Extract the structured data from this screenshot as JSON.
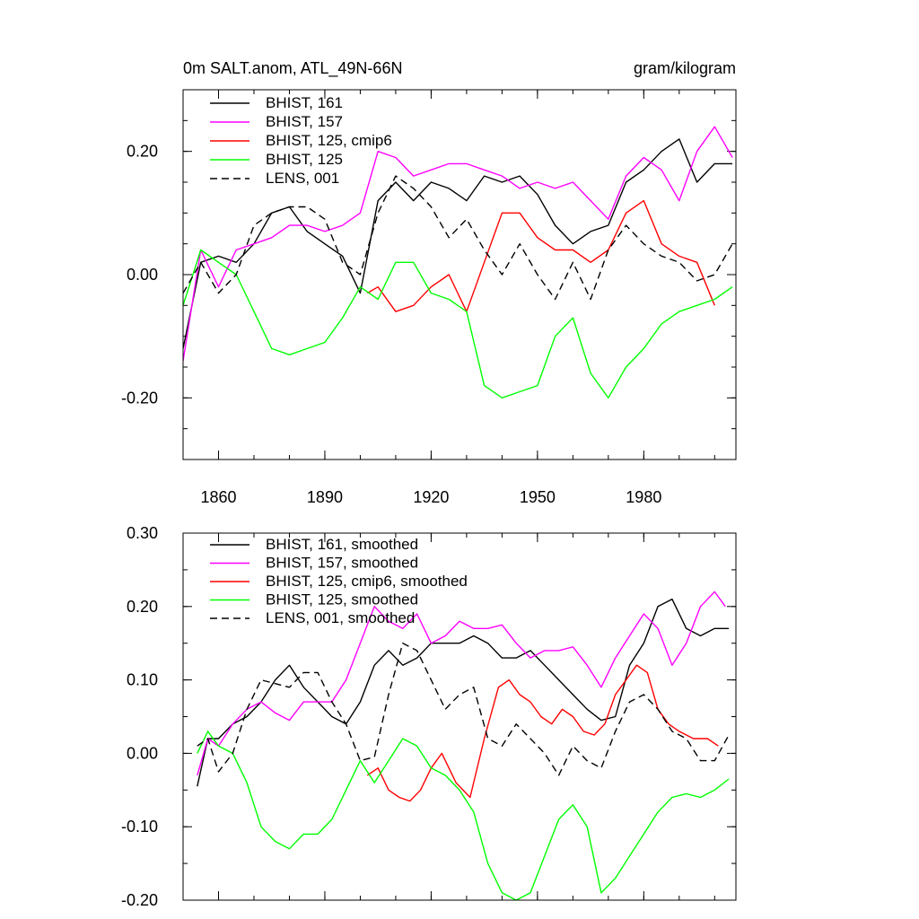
{
  "chart_data": [
    {
      "type": "line",
      "title": "0m SALT.anom, ATL_49N-66N",
      "units": "gram/kilogram",
      "xlim": [
        1850,
        2006
      ],
      "ylim": [
        -0.3,
        0.3
      ],
      "ytick_values": [
        -0.2,
        0.0,
        0.2
      ],
      "ytick_labels": [
        "-0.20",
        "0.00",
        "0.20"
      ],
      "xtick_values": [
        1860,
        1890,
        1920,
        1950,
        1980
      ],
      "xtick_labels": [
        "1860",
        "1890",
        "1920",
        "1950",
        "1980"
      ],
      "legend_position": "top-left",
      "series": [
        {
          "name": "BHIST, 161",
          "color": "#000000",
          "dash": "solid",
          "x": [
            1850,
            1855,
            1860,
            1865,
            1870,
            1875,
            1880,
            1885,
            1890,
            1895,
            1900,
            1905,
            1910,
            1915,
            1920,
            1925,
            1930,
            1935,
            1940,
            1945,
            1950,
            1955,
            1960,
            1965,
            1970,
            1975,
            1980,
            1985,
            1990,
            1995,
            2000,
            2005
          ],
          "y": [
            -0.12,
            0.02,
            0.03,
            0.02,
            0.05,
            0.1,
            0.11,
            0.07,
            0.05,
            0.03,
            -0.03,
            0.12,
            0.15,
            0.12,
            0.15,
            0.14,
            0.12,
            0.16,
            0.15,
            0.16,
            0.13,
            0.08,
            0.05,
            0.07,
            0.08,
            0.15,
            0.17,
            0.2,
            0.22,
            0.15,
            0.18,
            0.18
          ]
        },
        {
          "name": "BHIST, 157",
          "color": "#ff00ff",
          "dash": "solid",
          "x": [
            1850,
            1855,
            1860,
            1865,
            1870,
            1875,
            1880,
            1885,
            1890,
            1895,
            1900,
            1905,
            1910,
            1915,
            1920,
            1925,
            1930,
            1935,
            1940,
            1945,
            1950,
            1955,
            1960,
            1965,
            1970,
            1975,
            1980,
            1985,
            1990,
            1995,
            2000,
            2005
          ],
          "y": [
            -0.14,
            0.04,
            -0.02,
            0.04,
            0.05,
            0.06,
            0.08,
            0.08,
            0.07,
            0.08,
            0.1,
            0.2,
            0.19,
            0.16,
            0.17,
            0.18,
            0.18,
            0.17,
            0.16,
            0.14,
            0.15,
            0.14,
            0.15,
            0.12,
            0.09,
            0.16,
            0.19,
            0.17,
            0.12,
            0.2,
            0.24,
            0.19
          ]
        },
        {
          "name": "BHIST, 125, cmip6",
          "color": "#ff0000",
          "dash": "solid",
          "x": [
            1902,
            1905,
            1910,
            1915,
            1920,
            1925,
            1930,
            1935,
            1940,
            1945,
            1950,
            1955,
            1960,
            1965,
            1970,
            1975,
            1980,
            1985,
            1990,
            1995,
            2000
          ],
          "y": [
            -0.03,
            -0.02,
            -0.06,
            -0.05,
            -0.02,
            0.0,
            -0.06,
            0.02,
            0.1,
            0.1,
            0.06,
            0.04,
            0.04,
            0.02,
            0.04,
            0.1,
            0.12,
            0.05,
            0.03,
            0.02,
            -0.05
          ]
        },
        {
          "name": "BHIST, 125",
          "color": "#00ff00",
          "dash": "solid",
          "x": [
            1850,
            1855,
            1860,
            1865,
            1870,
            1875,
            1880,
            1885,
            1890,
            1895,
            1900,
            1905,
            1910,
            1915,
            1920,
            1925,
            1930,
            1935,
            1940,
            1945,
            1950,
            1955,
            1960,
            1965,
            1970,
            1975,
            1980,
            1985,
            1990,
            1995,
            2000,
            2005
          ],
          "y": [
            -0.05,
            0.04,
            0.02,
            0.0,
            -0.06,
            -0.12,
            -0.13,
            -0.12,
            -0.11,
            -0.07,
            -0.02,
            -0.04,
            0.02,
            0.02,
            -0.03,
            -0.04,
            -0.06,
            -0.18,
            -0.2,
            -0.19,
            -0.18,
            -0.1,
            -0.07,
            -0.16,
            -0.2,
            -0.15,
            -0.12,
            -0.08,
            -0.06,
            -0.05,
            -0.04,
            -0.02
          ]
        },
        {
          "name": "LENS, 001",
          "color": "#000000",
          "dash": "dashed",
          "x": [
            1850,
            1855,
            1860,
            1865,
            1870,
            1875,
            1880,
            1885,
            1890,
            1895,
            1900,
            1905,
            1910,
            1915,
            1920,
            1925,
            1930,
            1935,
            1940,
            1945,
            1950,
            1955,
            1960,
            1965,
            1970,
            1975,
            1980,
            1985,
            1990,
            1995,
            2000,
            2005
          ],
          "y": [
            -0.03,
            0.02,
            -0.03,
            0.0,
            0.08,
            0.1,
            0.11,
            0.11,
            0.09,
            0.02,
            0.0,
            0.1,
            0.16,
            0.14,
            0.11,
            0.06,
            0.09,
            0.04,
            0.0,
            0.05,
            0.0,
            -0.04,
            0.02,
            -0.04,
            0.04,
            0.08,
            0.05,
            0.03,
            0.02,
            -0.01,
            0.0,
            0.05
          ]
        }
      ]
    },
    {
      "type": "line",
      "title": "",
      "xlim": [
        1850,
        2006
      ],
      "ylim": [
        -0.2,
        0.3
      ],
      "ytick_values": [
        -0.2,
        -0.1,
        0.0,
        0.1,
        0.2,
        0.3
      ],
      "ytick_labels": [
        "-0.20",
        "-0.10",
        "0.00",
        "0.10",
        "0.20",
        "0.30"
      ],
      "xtick_values": [
        1860,
        1890,
        1920,
        1950,
        1980
      ],
      "legend_position": "top-left",
      "series": [
        {
          "name": "BHIST, 161, smoothed",
          "color": "#000000",
          "dash": "solid",
          "x": [
            1854,
            1857,
            1860,
            1864,
            1868,
            1872,
            1876,
            1880,
            1884,
            1888,
            1892,
            1896,
            1900,
            1904,
            1908,
            1912,
            1916,
            1920,
            1924,
            1928,
            1932,
            1936,
            1940,
            1944,
            1948,
            1952,
            1956,
            1960,
            1964,
            1968,
            1972,
            1976,
            1980,
            1984,
            1988,
            1992,
            1996,
            2000,
            2004
          ],
          "y": [
            -0.045,
            0.02,
            0.02,
            0.04,
            0.05,
            0.07,
            0.1,
            0.12,
            0.09,
            0.07,
            0.05,
            0.04,
            0.07,
            0.12,
            0.14,
            0.12,
            0.13,
            0.15,
            0.15,
            0.15,
            0.16,
            0.15,
            0.13,
            0.13,
            0.14,
            0.12,
            0.1,
            0.08,
            0.06,
            0.045,
            0.05,
            0.12,
            0.15,
            0.2,
            0.21,
            0.17,
            0.16,
            0.17,
            0.17
          ]
        },
        {
          "name": "BHIST, 157, smoothed",
          "color": "#ff00ff",
          "dash": "solid",
          "x": [
            1854,
            1857,
            1860,
            1864,
            1868,
            1872,
            1876,
            1880,
            1884,
            1888,
            1892,
            1896,
            1900,
            1904,
            1908,
            1912,
            1916,
            1920,
            1924,
            1928,
            1932,
            1936,
            1940,
            1944,
            1948,
            1952,
            1956,
            1960,
            1964,
            1968,
            1972,
            1976,
            1980,
            1984,
            1988,
            1992,
            1996,
            2000,
            2003
          ],
          "y": [
            -0.03,
            0.02,
            0.01,
            0.04,
            0.06,
            0.07,
            0.055,
            0.045,
            0.07,
            0.07,
            0.07,
            0.1,
            0.15,
            0.2,
            0.18,
            0.17,
            0.19,
            0.15,
            0.16,
            0.18,
            0.17,
            0.17,
            0.175,
            0.15,
            0.13,
            0.14,
            0.14,
            0.145,
            0.12,
            0.09,
            0.13,
            0.16,
            0.19,
            0.17,
            0.12,
            0.15,
            0.2,
            0.22,
            0.2
          ]
        },
        {
          "name": "BHIST, 125, cmip6, smoothed",
          "color": "#ff0000",
          "dash": "solid",
          "x": [
            1902,
            1905,
            1908,
            1911,
            1914,
            1917,
            1920,
            1923,
            1927,
            1931,
            1935,
            1939,
            1942,
            1945,
            1948,
            1951,
            1954,
            1957,
            1960,
            1963,
            1966,
            1969,
            1972,
            1975,
            1978,
            1981,
            1984,
            1987,
            1990,
            1994,
            1998,
            2001
          ],
          "y": [
            -0.03,
            -0.02,
            -0.05,
            -0.06,
            -0.065,
            -0.05,
            -0.02,
            0.0,
            -0.04,
            -0.06,
            0.02,
            0.09,
            0.1,
            0.08,
            0.07,
            0.05,
            0.04,
            0.06,
            0.05,
            0.03,
            0.025,
            0.04,
            0.08,
            0.1,
            0.12,
            0.11,
            0.06,
            0.04,
            0.03,
            0.02,
            0.02,
            0.01
          ]
        },
        {
          "name": "BHIST, 125, smoothed",
          "color": "#00ff00",
          "dash": "solid",
          "x": [
            1854,
            1857,
            1860,
            1864,
            1868,
            1872,
            1876,
            1880,
            1884,
            1888,
            1892,
            1896,
            1900,
            1904,
            1908,
            1912,
            1916,
            1920,
            1924,
            1928,
            1932,
            1936,
            1940,
            1944,
            1948,
            1952,
            1956,
            1960,
            1964,
            1968,
            1972,
            1976,
            1980,
            1984,
            1988,
            1992,
            1996,
            2000,
            2004
          ],
          "y": [
            0.0,
            0.03,
            0.01,
            0.0,
            -0.04,
            -0.1,
            -0.12,
            -0.13,
            -0.11,
            -0.11,
            -0.09,
            -0.05,
            -0.01,
            -0.04,
            -0.01,
            0.02,
            0.01,
            -0.02,
            -0.03,
            -0.05,
            -0.08,
            -0.15,
            -0.19,
            -0.2,
            -0.19,
            -0.14,
            -0.09,
            -0.07,
            -0.1,
            -0.19,
            -0.17,
            -0.14,
            -0.11,
            -0.08,
            -0.06,
            -0.055,
            -0.06,
            -0.05,
            -0.035
          ]
        },
        {
          "name": "LENS, 001, smoothed",
          "color": "#000000",
          "dash": "dashed",
          "x": [
            1854,
            1857,
            1860,
            1864,
            1868,
            1872,
            1876,
            1880,
            1884,
            1888,
            1892,
            1896,
            1900,
            1904,
            1908,
            1912,
            1916,
            1920,
            1924,
            1928,
            1932,
            1936,
            1940,
            1944,
            1948,
            1952,
            1956,
            1960,
            1964,
            1968,
            1972,
            1976,
            1980,
            1984,
            1988,
            1992,
            1996,
            2000,
            2004
          ],
          "y": [
            0.01,
            0.02,
            -0.025,
            0.0,
            0.06,
            0.1,
            0.095,
            0.09,
            0.11,
            0.11,
            0.07,
            0.04,
            -0.01,
            -0.005,
            0.08,
            0.15,
            0.14,
            0.1,
            0.06,
            0.08,
            0.09,
            0.02,
            0.01,
            0.04,
            0.02,
            0.0,
            -0.03,
            0.01,
            -0.01,
            -0.02,
            0.03,
            0.07,
            0.08,
            0.06,
            0.03,
            0.02,
            -0.01,
            -0.01,
            0.025
          ]
        }
      ]
    }
  ]
}
